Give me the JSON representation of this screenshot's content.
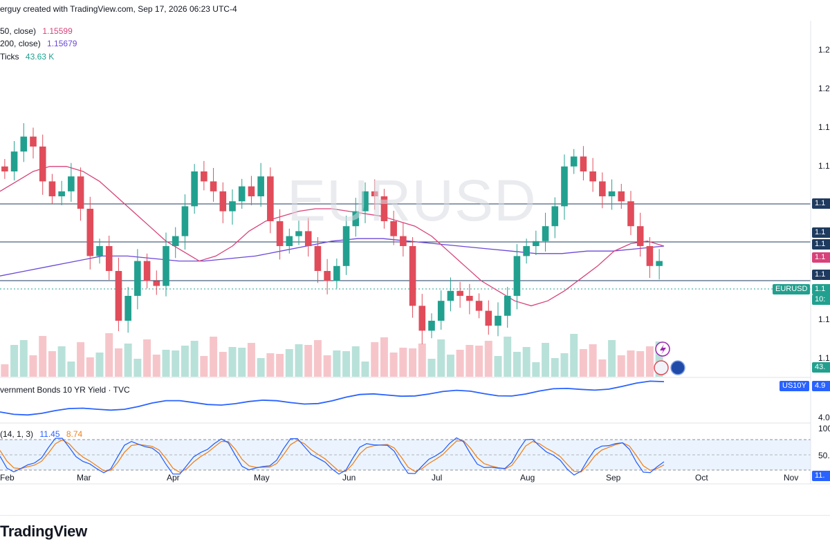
{
  "header": {
    "text": "erguy created with TradingView.com, Sep 17, 2026 06:23 UTC-4"
  },
  "legend": [
    {
      "label": "50, close)",
      "value": "1.15599",
      "color": "#d7427a"
    },
    {
      "label": "200, close)",
      "value": "1.15679",
      "color": "#6b47d8"
    },
    {
      "label": "Ticks",
      "value": "43.63 K",
      "color": "#22a08f"
    }
  ],
  "watermark": "EURUSD",
  "price_axis": {
    "ticks": [
      "1.2",
      "1.2",
      "1.1",
      "1.1",
      "1.1",
      "1.1",
      "1.1",
      "1.1",
      "1.1",
      "1.1",
      "1.1"
    ]
  },
  "price_tags": [
    {
      "text": "1.1",
      "color": "#1e3a5f"
    },
    {
      "text": "1.1",
      "color": "#1e3a5f"
    },
    {
      "text": "1.1",
      "color": "#1e3a5f"
    },
    {
      "text": "1.1",
      "color": "#d7427a"
    },
    {
      "text": "1.1",
      "color": "#1e3a5f"
    },
    {
      "text": "1.1",
      "color": "#22a08f"
    },
    {
      "text": "10:",
      "color": "#22a08f"
    },
    {
      "text": "43.",
      "color": "#22a08f"
    }
  ],
  "symbol_tag": {
    "text": "EURUSD",
    "color": "#22a08f"
  },
  "pane2": {
    "title": "vernment Bonds 10 YR Yield · TVC",
    "tag_symbol": "US10Y",
    "tag_value": "4.9",
    "tag_color": "#2962ff",
    "tick": "4.0"
  },
  "stoch": {
    "title": "(14, 1, 3)",
    "k_value": "11.45",
    "d_value": "8.74",
    "k_color": "#2962ff",
    "d_color": "#f0821e",
    "ticks": [
      "100",
      "50.",
      "11."
    ]
  },
  "time_axis": [
    "Feb",
    "Mar",
    "Apr",
    "May",
    "Jun",
    "Jul",
    "Aug",
    "Sep",
    "Oct",
    "Nov"
  ],
  "brand": "TradingView",
  "colors": {
    "up": "#22a08f",
    "down": "#e04c5a",
    "ma50": "#d7427a",
    "ma200": "#6b47d8",
    "level": "#1e3a5f",
    "yield": "#2962ff"
  },
  "chart_data": {
    "type": "candlestick",
    "symbol": "EURUSD",
    "x_range": [
      "Feb",
      "Nov"
    ],
    "ma50": "1.15599",
    "ma200": "1.15679",
    "volume_last": "43.63 K",
    "stochastic": {
      "k": "11.45",
      "d": "8.74"
    },
    "close_path_approx": [
      0.7,
      0.78,
      0.84,
      0.8,
      0.66,
      0.6,
      0.62,
      0.68,
      0.55,
      0.36,
      0.4,
      0.3,
      0.1,
      0.2,
      0.34,
      0.26,
      0.24,
      0.4,
      0.44,
      0.56,
      0.7,
      0.66,
      0.62,
      0.54,
      0.58,
      0.64,
      0.6,
      0.68,
      0.5,
      0.4,
      0.44,
      0.46,
      0.4,
      0.3,
      0.26,
      0.32,
      0.48,
      0.54,
      0.62,
      0.6,
      0.5,
      0.44,
      0.4,
      0.16,
      0.06,
      0.1,
      0.18,
      0.22,
      0.2,
      0.18,
      0.14,
      0.08,
      0.12,
      0.2,
      0.36,
      0.4,
      0.42,
      0.48,
      0.56,
      0.72,
      0.76,
      0.7,
      0.66,
      0.6,
      0.62,
      0.58,
      0.48,
      0.4,
      0.32,
      0.34
    ],
    "ma50_path_approx": [
      0.62,
      0.66,
      0.7,
      0.72,
      0.72,
      0.7,
      0.66,
      0.6,
      0.54,
      0.48,
      0.42,
      0.38,
      0.34,
      0.36,
      0.4,
      0.46,
      0.5,
      0.52,
      0.54,
      0.55,
      0.55,
      0.54,
      0.53,
      0.52,
      0.5,
      0.48,
      0.44,
      0.38,
      0.32,
      0.26,
      0.22,
      0.18,
      0.16,
      0.18,
      0.22,
      0.27,
      0.32,
      0.38,
      0.41,
      0.42,
      0.4
    ],
    "ma200_path_approx": [
      0.28,
      0.3,
      0.32,
      0.34,
      0.36,
      0.36,
      0.35,
      0.34,
      0.34,
      0.35,
      0.36,
      0.38,
      0.4,
      0.42,
      0.43,
      0.43,
      0.42,
      0.41,
      0.4,
      0.39,
      0.38,
      0.37,
      0.37,
      0.38,
      0.38,
      0.39,
      0.4
    ],
    "levels_approx": [
      0.58,
      0.4,
      0.22
    ]
  }
}
